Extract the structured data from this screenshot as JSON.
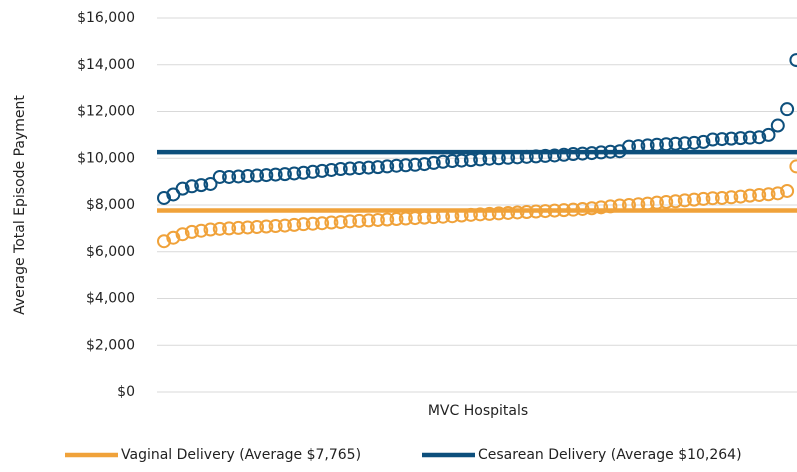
{
  "chart_data": {
    "type": "scatter",
    "xlabel": "MVC Hospitals",
    "ylabel": "Average Total Episode Payment",
    "ylim": [
      0,
      16000
    ],
    "yticks": [
      {
        "value": 0,
        "label": "$0"
      },
      {
        "value": 2000,
        "label": "$2,000"
      },
      {
        "value": 4000,
        "label": "$4,000"
      },
      {
        "value": 6000,
        "label": "$6,000"
      },
      {
        "value": 8000,
        "label": "$8,000"
      },
      {
        "value": 10000,
        "label": "$10,000"
      },
      {
        "value": 12000,
        "label": "$12,000"
      },
      {
        "value": 14000,
        "label": "$14,000"
      },
      {
        "value": 16000,
        "label": "$16,000"
      }
    ],
    "grid": true,
    "legend": "bottom",
    "series": [
      {
        "name": "Vaginal Delivery (Average $7,765)",
        "color": "#f0a23a",
        "average": 7765,
        "values": [
          6450,
          6600,
          6750,
          6850,
          6900,
          6950,
          6980,
          7000,
          7020,
          7040,
          7060,
          7080,
          7100,
          7120,
          7150,
          7180,
          7200,
          7220,
          7250,
          7270,
          7300,
          7320,
          7340,
          7360,
          7380,
          7400,
          7420,
          7440,
          7460,
          7480,
          7500,
          7520,
          7550,
          7580,
          7600,
          7620,
          7640,
          7660,
          7680,
          7700,
          7720,
          7740,
          7760,
          7780,
          7800,
          7830,
          7860,
          7900,
          7940,
          7980,
          8000,
          8030,
          8060,
          8100,
          8130,
          8160,
          8200,
          8230,
          8260,
          8290,
          8300,
          8330,
          8360,
          8400,
          8430,
          8460,
          8500,
          8600,
          9650
        ]
      },
      {
        "name": "Cesarean Delivery (Average $10,264)",
        "color": "#0d4f7c",
        "average": 10264,
        "values": [
          8300,
          8450,
          8700,
          8800,
          8850,
          8900,
          9200,
          9200,
          9220,
          9240,
          9260,
          9280,
          9300,
          9320,
          9350,
          9380,
          9420,
          9460,
          9500,
          9540,
          9560,
          9580,
          9600,
          9620,
          9650,
          9680,
          9700,
          9720,
          9750,
          9800,
          9850,
          9880,
          9900,
          9920,
          9950,
          9980,
          10000,
          10020,
          10040,
          10060,
          10080,
          10100,
          10120,
          10150,
          10180,
          10200,
          10220,
          10250,
          10280,
          10300,
          10500,
          10520,
          10550,
          10580,
          10600,
          10620,
          10640,
          10660,
          10700,
          10800,
          10820,
          10840,
          10860,
          10880,
          10900,
          11000,
          11400,
          12100,
          14200
        ]
      }
    ]
  }
}
